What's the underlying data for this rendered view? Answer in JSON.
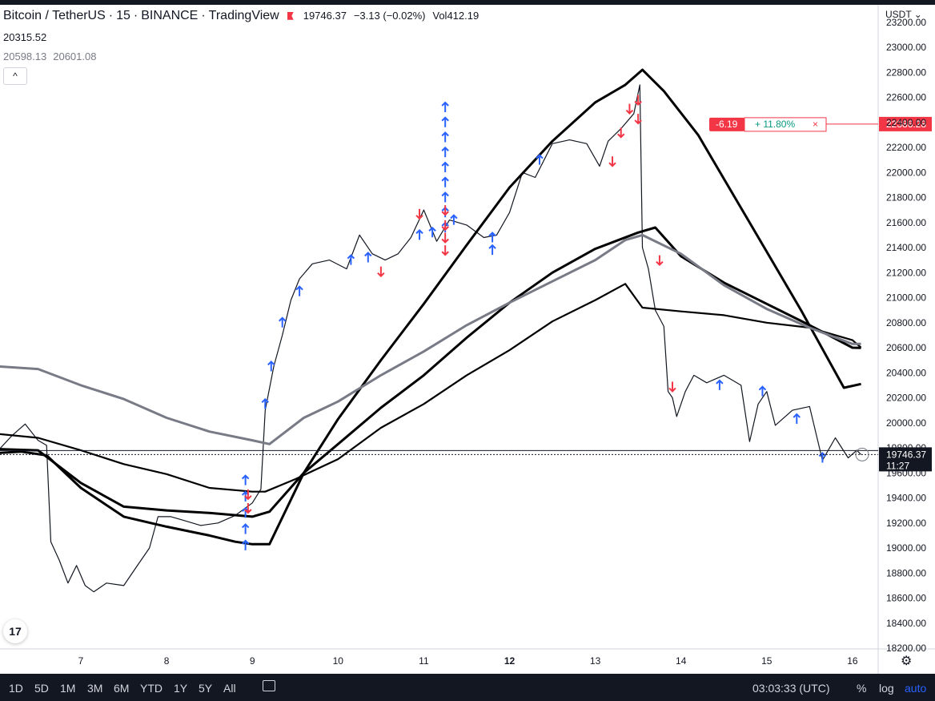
{
  "legend": {
    "symbol": "Bitcoin / TetherUS",
    "interval": "15",
    "exchange": "BINANCE",
    "source": "TradingView",
    "close": "19746.37",
    "change": "−3.13 (−0.02%)",
    "vol_label": "Vol",
    "vol_value": "412.19",
    "indicator1": "20315.52",
    "indicator2a": "20598.13",
    "indicator2b": "20601.08",
    "collapse": "^"
  },
  "currency": "USDT",
  "order_line": {
    "left": "-6.19",
    "pct": "+ 11.80%",
    "close": "×",
    "price_label": "22386.28",
    "price": 22386.28
  },
  "last_price": {
    "price": "19746.37",
    "countdown": "11:27",
    "value": 19746.37
  },
  "bottom": {
    "ranges": [
      "1D",
      "5D",
      "1M",
      "3M",
      "6M",
      "YTD",
      "1Y",
      "5Y",
      "All"
    ],
    "clock": "03:03:33 (UTC)",
    "percent": "%",
    "log": "log",
    "auto": "auto"
  },
  "tv_logo": "17",
  "colors": {
    "up_arrow": "#2962ff",
    "down_arrow": "#f23645",
    "order_red": "#f23645",
    "order_green": "#089981",
    "price_bg": "#131722",
    "bar": "#131722"
  },
  "chart_data": {
    "type": "line",
    "ylim": [
      18200,
      23300
    ],
    "y_ticks": [
      18200,
      18400,
      18600,
      18800,
      19000,
      19200,
      19400,
      19600,
      19800,
      20000,
      20200,
      20400,
      20600,
      20800,
      21000,
      21200,
      21400,
      21600,
      21800,
      22000,
      22200,
      22400,
      22600,
      22800,
      23000,
      23200
    ],
    "x_ticks": [
      "7",
      "8",
      "9",
      "10",
      "11",
      "12",
      "13",
      "14",
      "15",
      "16"
    ],
    "x_tick_days": [
      7,
      8,
      9,
      10,
      11,
      12,
      13,
      14,
      15,
      16
    ],
    "xlim_days": [
      6.05,
      16.25
    ],
    "series": [
      {
        "style": "price",
        "points": [
          [
            6.05,
            19790
          ],
          [
            6.2,
            19900
          ],
          [
            6.35,
            19990
          ],
          [
            6.5,
            19860
          ],
          [
            6.6,
            19820
          ],
          [
            6.65,
            19050
          ],
          [
            6.75,
            18900
          ],
          [
            6.85,
            18720
          ],
          [
            6.95,
            18860
          ],
          [
            7.05,
            18700
          ],
          [
            7.15,
            18650
          ],
          [
            7.3,
            18720
          ],
          [
            7.5,
            18700
          ],
          [
            7.65,
            18850
          ],
          [
            7.8,
            19000
          ],
          [
            7.9,
            19250
          ],
          [
            8.05,
            19250
          ],
          [
            8.2,
            19220
          ],
          [
            8.4,
            19180
          ],
          [
            8.6,
            19200
          ],
          [
            8.8,
            19260
          ],
          [
            9.0,
            19360
          ],
          [
            9.1,
            19470
          ],
          [
            9.15,
            20100
          ],
          [
            9.25,
            20450
          ],
          [
            9.35,
            20700
          ],
          [
            9.45,
            20980
          ],
          [
            9.55,
            21150
          ],
          [
            9.7,
            21270
          ],
          [
            9.9,
            21300
          ],
          [
            10.1,
            21230
          ],
          [
            10.25,
            21500
          ],
          [
            10.4,
            21350
          ],
          [
            10.55,
            21300
          ],
          [
            10.7,
            21350
          ],
          [
            10.85,
            21480
          ],
          [
            11.0,
            21700
          ],
          [
            11.15,
            21450
          ],
          [
            11.3,
            21620
          ],
          [
            11.5,
            21580
          ],
          [
            11.7,
            21480
          ],
          [
            11.85,
            21500
          ],
          [
            12.0,
            21680
          ],
          [
            12.15,
            22000
          ],
          [
            12.3,
            21960
          ],
          [
            12.5,
            22230
          ],
          [
            12.7,
            22260
          ],
          [
            12.9,
            22230
          ],
          [
            13.05,
            22050
          ],
          [
            13.15,
            22250
          ],
          [
            13.3,
            22350
          ],
          [
            13.45,
            22470
          ],
          [
            13.52,
            22700
          ],
          [
            13.55,
            21400
          ],
          [
            13.62,
            21230
          ],
          [
            13.7,
            20900
          ],
          [
            13.8,
            20770
          ],
          [
            13.85,
            20250
          ],
          [
            13.9,
            20200
          ],
          [
            13.95,
            20050
          ],
          [
            14.05,
            20250
          ],
          [
            14.15,
            20380
          ],
          [
            14.3,
            20320
          ],
          [
            14.5,
            20380
          ],
          [
            14.7,
            20300
          ],
          [
            14.8,
            19850
          ],
          [
            14.9,
            20150
          ],
          [
            15.0,
            20250
          ],
          [
            15.1,
            19980
          ],
          [
            15.3,
            20100
          ],
          [
            15.5,
            20130
          ],
          [
            15.65,
            19700
          ],
          [
            15.8,
            19880
          ],
          [
            15.95,
            19720
          ],
          [
            16.05,
            19780
          ],
          [
            16.1,
            19746
          ]
        ]
      },
      {
        "style": "ma-fast",
        "points": [
          [
            6.05,
            19760
          ],
          [
            6.3,
            19770
          ],
          [
            6.6,
            19740
          ],
          [
            7.0,
            19480
          ],
          [
            7.5,
            19250
          ],
          [
            8.0,
            19170
          ],
          [
            8.5,
            19100
          ],
          [
            8.8,
            19050
          ],
          [
            9.0,
            19030
          ],
          [
            9.2,
            19030
          ],
          [
            9.6,
            19600
          ],
          [
            10.0,
            20030
          ],
          [
            10.5,
            20500
          ],
          [
            11.0,
            20950
          ],
          [
            11.5,
            21420
          ],
          [
            12.0,
            21880
          ],
          [
            12.5,
            22250
          ],
          [
            13.0,
            22560
          ],
          [
            13.35,
            22700
          ],
          [
            13.55,
            22820
          ],
          [
            13.8,
            22650
          ],
          [
            14.2,
            22300
          ],
          [
            14.8,
            21600
          ],
          [
            15.4,
            20900
          ],
          [
            15.9,
            20280
          ],
          [
            16.1,
            20310
          ]
        ]
      },
      {
        "style": "ma-mid",
        "points": [
          [
            6.05,
            19790
          ],
          [
            6.5,
            19780
          ],
          [
            7.0,
            19520
          ],
          [
            7.5,
            19330
          ],
          [
            8.0,
            19300
          ],
          [
            8.5,
            19280
          ],
          [
            9.0,
            19250
          ],
          [
            9.2,
            19290
          ],
          [
            9.6,
            19600
          ],
          [
            10.0,
            19830
          ],
          [
            10.5,
            20120
          ],
          [
            11.0,
            20380
          ],
          [
            11.5,
            20680
          ],
          [
            12.0,
            20960
          ],
          [
            12.5,
            21200
          ],
          [
            13.0,
            21390
          ],
          [
            13.5,
            21520
          ],
          [
            13.7,
            21560
          ],
          [
            14.0,
            21330
          ],
          [
            14.5,
            21120
          ],
          [
            15.0,
            20950
          ],
          [
            15.5,
            20780
          ],
          [
            16.0,
            20600
          ],
          [
            16.1,
            20598
          ]
        ]
      },
      {
        "style": "ma-slow",
        "points": [
          [
            6.05,
            19910
          ],
          [
            6.5,
            19880
          ],
          [
            7.0,
            19780
          ],
          [
            7.5,
            19670
          ],
          [
            8.0,
            19590
          ],
          [
            8.5,
            19480
          ],
          [
            9.0,
            19450
          ],
          [
            9.15,
            19450
          ],
          [
            9.5,
            19550
          ],
          [
            10.0,
            19710
          ],
          [
            10.5,
            19960
          ],
          [
            11.0,
            20150
          ],
          [
            11.5,
            20380
          ],
          [
            12.0,
            20580
          ],
          [
            12.5,
            20810
          ],
          [
            13.0,
            20980
          ],
          [
            13.35,
            21110
          ],
          [
            13.55,
            20920
          ],
          [
            14.0,
            20890
          ],
          [
            14.5,
            20860
          ],
          [
            15.0,
            20800
          ],
          [
            15.5,
            20760
          ],
          [
            16.0,
            20660
          ],
          [
            16.1,
            20601
          ]
        ]
      },
      {
        "style": "ma-slow2",
        "points": [
          [
            6.05,
            20450
          ],
          [
            6.5,
            20430
          ],
          [
            7.0,
            20300
          ],
          [
            7.5,
            20190
          ],
          [
            8.0,
            20040
          ],
          [
            8.5,
            19930
          ],
          [
            9.0,
            19860
          ],
          [
            9.2,
            19830
          ],
          [
            9.6,
            20040
          ],
          [
            10.0,
            20170
          ],
          [
            10.5,
            20380
          ],
          [
            11.0,
            20570
          ],
          [
            11.5,
            20780
          ],
          [
            12.0,
            20960
          ],
          [
            12.5,
            21130
          ],
          [
            13.0,
            21300
          ],
          [
            13.35,
            21460
          ],
          [
            13.55,
            21500
          ],
          [
            14.0,
            21350
          ],
          [
            14.5,
            21100
          ],
          [
            15.0,
            20910
          ],
          [
            15.5,
            20760
          ],
          [
            16.0,
            20630
          ],
          [
            16.1,
            20630
          ]
        ]
      }
    ],
    "up_arrows": [
      [
        8.92,
        19020
      ],
      [
        8.92,
        19150
      ],
      [
        8.92,
        19280
      ],
      [
        8.92,
        19410
      ],
      [
        8.92,
        19540
      ],
      [
        9.15,
        20150
      ],
      [
        9.22,
        20450
      ],
      [
        9.35,
        20800
      ],
      [
        9.55,
        21050
      ],
      [
        10.15,
        21300
      ],
      [
        10.35,
        21320
      ],
      [
        10.95,
        21500
      ],
      [
        11.1,
        21520
      ],
      [
        11.25,
        21560
      ],
      [
        11.25,
        21680
      ],
      [
        11.25,
        21800
      ],
      [
        11.25,
        21920
      ],
      [
        11.25,
        22040
      ],
      [
        11.25,
        22160
      ],
      [
        11.25,
        22280
      ],
      [
        11.25,
        22400
      ],
      [
        11.25,
        22520
      ],
      [
        11.35,
        21620
      ],
      [
        11.8,
        21480
      ],
      [
        11.8,
        21380
      ],
      [
        12.35,
        22100
      ],
      [
        15.65,
        19720
      ],
      [
        15.35,
        20030
      ],
      [
        14.95,
        20250
      ],
      [
        14.45,
        20300
      ]
    ],
    "down_arrows": [
      [
        8.95,
        19320
      ],
      [
        8.95,
        19430
      ],
      [
        11.25,
        21380
      ],
      [
        11.25,
        21480
      ],
      [
        11.25,
        21580
      ],
      [
        11.25,
        21700
      ],
      [
        10.95,
        21670
      ],
      [
        10.5,
        21210
      ],
      [
        13.2,
        22090
      ],
      [
        13.3,
        22320
      ],
      [
        13.4,
        22510
      ],
      [
        13.5,
        22430
      ],
      [
        13.5,
        22580
      ],
      [
        13.75,
        21300
      ],
      [
        13.9,
        20290
      ]
    ],
    "order_price": 22386.28
  }
}
